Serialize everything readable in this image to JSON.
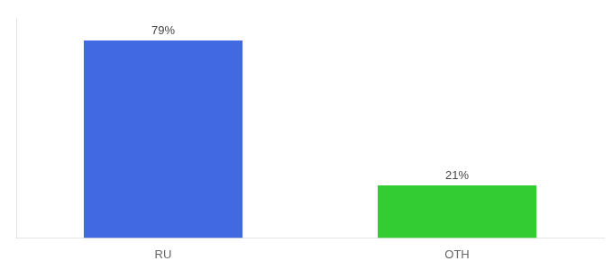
{
  "chart_data": {
    "type": "bar",
    "categories": [
      "RU",
      "OTH"
    ],
    "values": [
      79,
      21
    ],
    "value_labels": [
      "79%",
      "21%"
    ],
    "colors": [
      "#4169e1",
      "#33cc33"
    ],
    "ylim": [
      0,
      88
    ],
    "data_labels": true,
    "tick_labels": "x",
    "grid": false
  }
}
